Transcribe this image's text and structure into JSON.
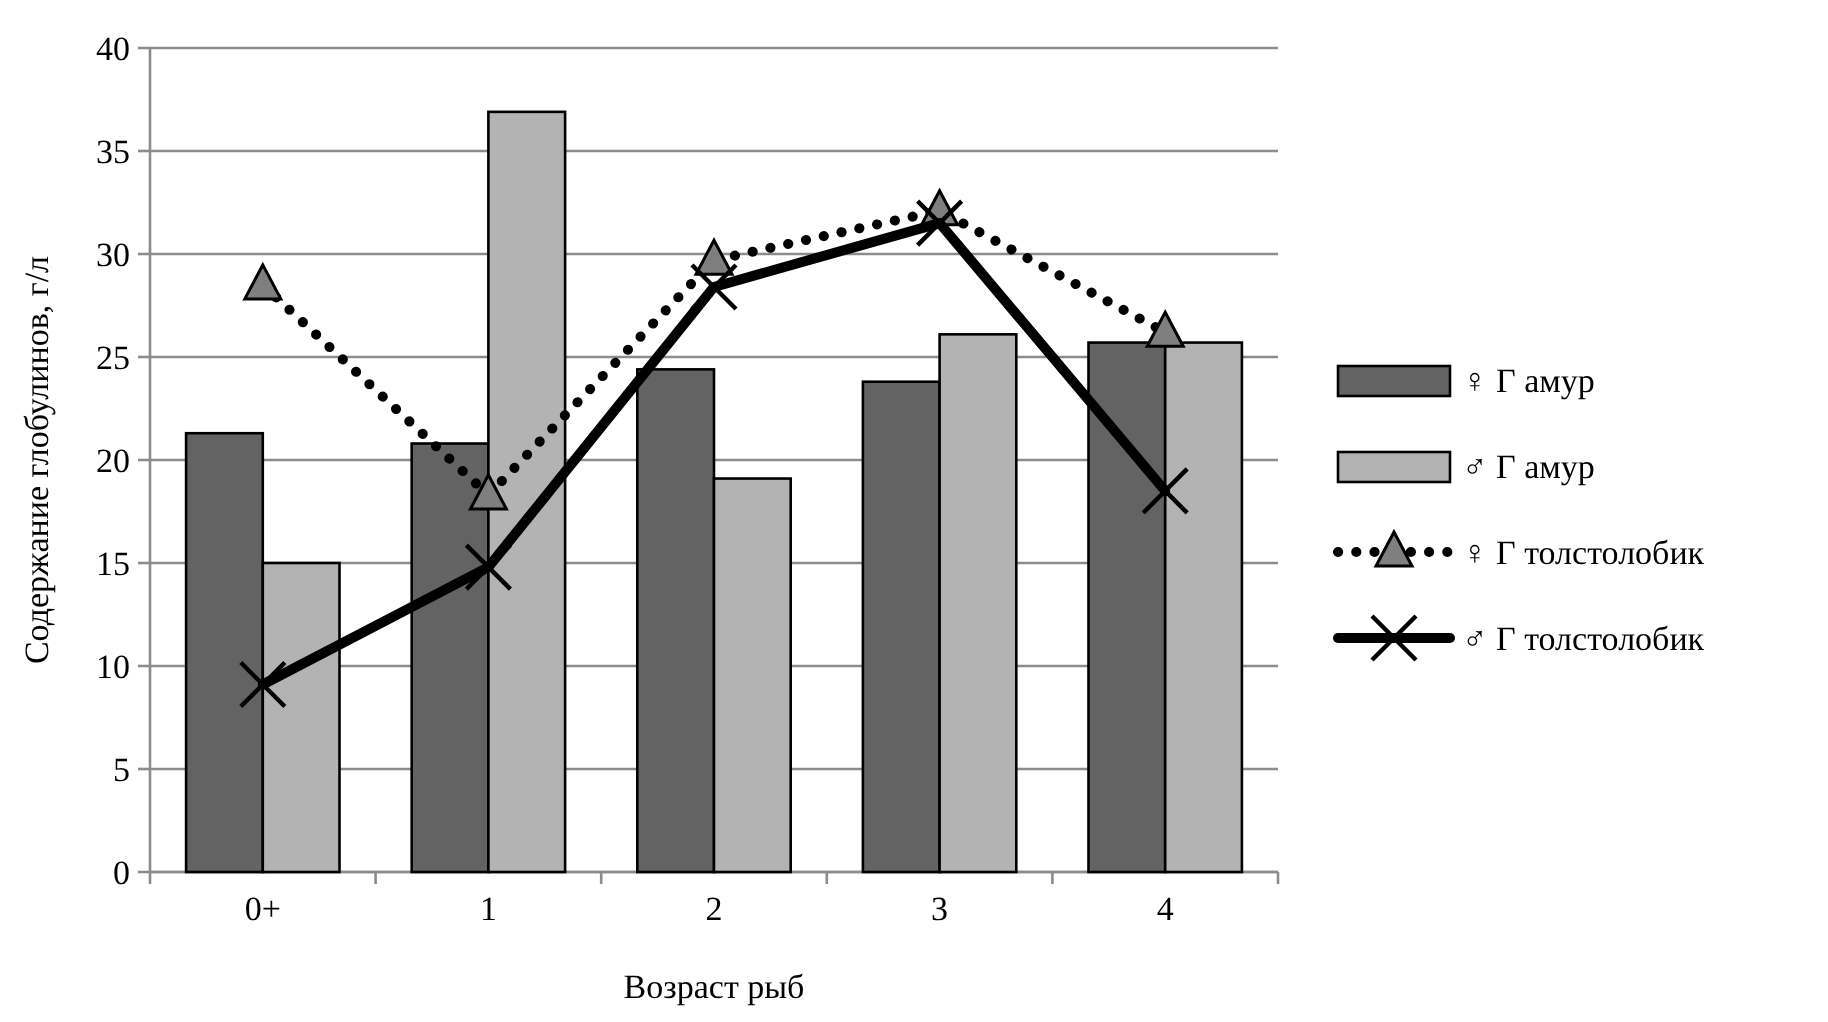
{
  "chart_data": {
    "type": "bar",
    "xlabel": "Возраст рыб",
    "ylabel": "Содержание глобулинов, г/л",
    "categories": [
      "0+",
      "1",
      "2",
      "3",
      "4"
    ],
    "ylim": [
      0,
      40
    ],
    "yticks": [
      0,
      5,
      10,
      15,
      20,
      25,
      30,
      35,
      40
    ],
    "grid": "y",
    "legend": "right",
    "series": [
      {
        "name": "♀ Г амур",
        "color": "#636363",
        "values": [
          21.3,
          20.8,
          24.4,
          23.8,
          25.7
        ]
      },
      {
        "name": "♂ Г амур",
        "color": "#b3b3b3",
        "values": [
          15.0,
          36.9,
          19.1,
          26.1,
          25.7
        ]
      },
      {
        "name": "♀ Г толстолобик",
        "type": "line",
        "color": "#000000",
        "line_style": "dotted",
        "marker": "triangle",
        "values": [
          28.5,
          18.3,
          29.7,
          32.1,
          26.2
        ]
      },
      {
        "name": "♂ Г толстолобик",
        "type": "line",
        "color": "#000000",
        "line_style": "solid",
        "marker": "cross",
        "values": [
          9.1,
          14.8,
          28.4,
          31.5,
          18.5
        ]
      }
    ]
  }
}
